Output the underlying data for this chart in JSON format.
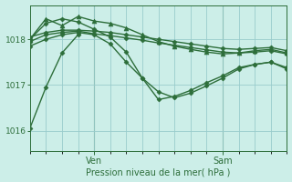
{
  "bg_color": "#cceee8",
  "grid_color": "#99cccc",
  "line_color": "#2d6e3a",
  "title": "Pression niveau de la mer( hPa )",
  "ylabel_vals": [
    1016,
    1017,
    1018
  ],
  "ylim": [
    1015.55,
    1018.75
  ],
  "xlim": [
    0,
    48
  ],
  "ven_x": 12,
  "sam_x": 36,
  "series": [
    {
      "x": [
        0,
        3,
        6,
        9,
        12,
        15,
        18,
        21,
        24,
        27,
        30,
        33,
        36,
        39,
        42,
        45,
        48
      ],
      "y": [
        1018.05,
        1018.15,
        1018.2,
        1018.2,
        1018.18,
        1018.15,
        1018.1,
        1018.05,
        1018.0,
        1017.95,
        1017.9,
        1017.85,
        1017.8,
        1017.78,
        1017.8,
        1017.82,
        1017.75
      ],
      "marker": "D",
      "ms": 2.5,
      "lw": 1.0
    },
    {
      "x": [
        0,
        3,
        6,
        9,
        12,
        15,
        18,
        21,
        24,
        27,
        30,
        33,
        36,
        39,
        42,
        45,
        48
      ],
      "y": [
        1017.95,
        1018.1,
        1018.15,
        1018.18,
        1018.12,
        1018.08,
        1018.03,
        1017.98,
        1017.92,
        1017.87,
        1017.82,
        1017.77,
        1017.72,
        1017.7,
        1017.72,
        1017.75,
        1017.68
      ],
      "marker": "D",
      "ms": 2.5,
      "lw": 1.0
    },
    {
      "x": [
        0,
        3,
        6,
        9,
        12,
        15,
        18,
        21,
        24,
        27,
        30,
        33,
        36,
        39,
        42,
        45,
        48
      ],
      "y": [
        1018.0,
        1018.45,
        1018.3,
        1018.5,
        1018.4,
        1018.35,
        1018.25,
        1018.1,
        1017.95,
        1017.85,
        1017.78,
        1017.72,
        1017.68,
        1017.7,
        1017.75,
        1017.78,
        1017.7
      ],
      "marker": "^",
      "ms": 3.5,
      "lw": 1.0
    },
    {
      "x": [
        0,
        3,
        6,
        9,
        12,
        15,
        18,
        21,
        24,
        27,
        30,
        33,
        36,
        39,
        42,
        45,
        48
      ],
      "y": [
        1017.85,
        1018.0,
        1018.1,
        1018.15,
        1018.1,
        1017.9,
        1017.5,
        1017.15,
        1016.85,
        1016.72,
        1016.82,
        1016.98,
        1017.15,
        1017.35,
        1017.45,
        1017.5,
        1017.38
      ],
      "marker": "D",
      "ms": 2.5,
      "lw": 1.0
    },
    {
      "x": [
        0,
        3,
        6,
        9,
        12,
        15,
        18,
        21,
        24,
        27,
        30,
        33,
        36,
        39,
        42,
        45,
        48
      ],
      "y": [
        1018.0,
        1018.35,
        1018.45,
        1018.38,
        1018.22,
        1018.05,
        1017.72,
        1017.15,
        1016.68,
        1016.75,
        1016.88,
        1017.05,
        1017.2,
        1017.38,
        1017.45,
        1017.5,
        1017.35
      ],
      "marker": "D",
      "ms": 2.5,
      "lw": 1.0
    },
    {
      "x": [
        0,
        3,
        6,
        9
      ],
      "y": [
        1016.05,
        1016.95,
        1017.7,
        1018.1
      ],
      "marker": "D",
      "ms": 2.5,
      "lw": 1.0
    }
  ]
}
